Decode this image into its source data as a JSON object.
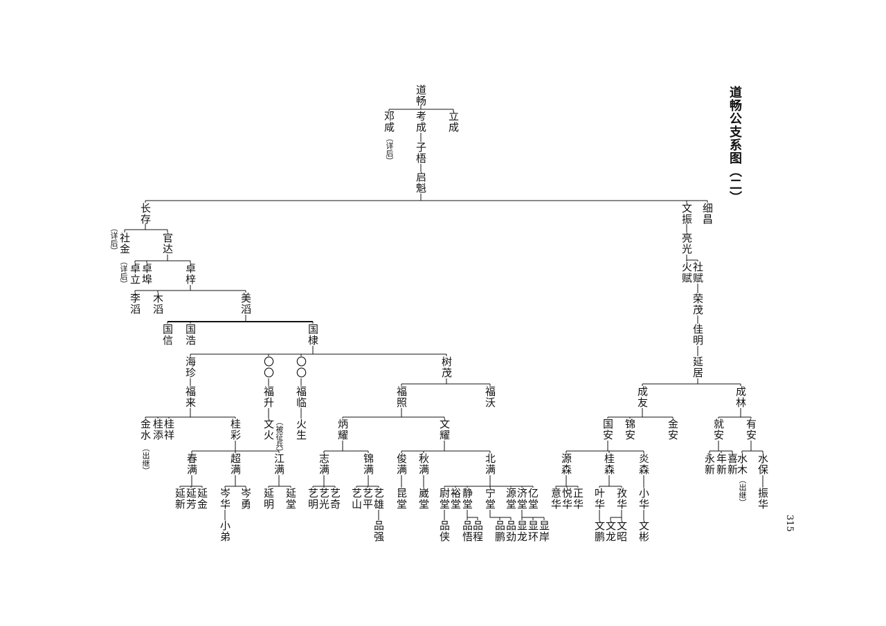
{
  "title": "道畅公支系图（二）",
  "page_number": "315",
  "tree": {
    "a1": "道畅",
    "a2": "邓咸",
    "a3": "考成",
    "a4": "立成",
    "a5": "子梧",
    "a6": "启魁",
    "b1": "长存",
    "b2": "文振",
    "b3": "细昌",
    "c1": "社金",
    "c2": "官达",
    "d1": "卓立",
    "d2": "卓埠",
    "d3": "卓梓",
    "e1": "李滔",
    "e2": "木滔",
    "e3": "美滔",
    "f1": "国信",
    "f2": "国浩",
    "f3": "国棣",
    "g1": "海珍",
    "g2": "〇〇",
    "g3": "〇〇",
    "g4": "树茂",
    "h1": "福来",
    "h2": "福升",
    "h3": "福临",
    "i1": "金水",
    "i2": "桂添",
    "i3": "桂祥",
    "i4": "桂彩",
    "j1": "文火",
    "k1": "火生",
    "l1": "春满",
    "l2": "超满",
    "l3": "江满",
    "m1": "延新",
    "m2": "延芳",
    "m3": "延金",
    "m4": "岑华",
    "m5": "岑勇",
    "m6": "延明",
    "m7": "延堂",
    "n1": "小弟",
    "o1": "福照",
    "o2": "福沃",
    "p1": "炳耀",
    "p2": "文耀",
    "q1": "志满",
    "q2": "锦满",
    "q3": "俊满",
    "q4": "秋满",
    "q5": "北满",
    "r1": "艺明",
    "r2": "艺光",
    "r3": "艺奇",
    "r4": "艺山",
    "r5": "艺平",
    "r6": "艺雄",
    "r7": "昆堂",
    "r8": "崴堂",
    "r9": "尉堂",
    "r10": "裕堂",
    "r11": "静堂",
    "r12": "宁堂",
    "r13": "源堂",
    "r14": "济堂",
    "r15": "亿堂",
    "s1": "品强",
    "s2": "品侠",
    "s3": "品悟",
    "s4": "品程",
    "s5": "品鹏",
    "s6": "品劲",
    "s7": "显龙",
    "s8": "显环",
    "s9": "显岸",
    "t1": "亮光",
    "t2": "火赋",
    "t3": "社赋",
    "t4": "荣茂",
    "t5": "佳明",
    "t6": "延居",
    "u1": "成友",
    "u2": "成林",
    "v1": "国安",
    "v2": "锦安",
    "v3": "金安",
    "w1": "源森",
    "w2": "桂森",
    "w3": "炎森",
    "x1": "意华",
    "x2": "悦华",
    "x3": "正华",
    "x4": "叶华",
    "x5": "孜华",
    "x6": "小华",
    "y1": "文鹏",
    "y2": "文龙",
    "y3": "文昭",
    "y4": "文彬",
    "z1": "就安",
    "z2": "有安",
    "z3": "永新",
    "z4": "年新",
    "z5": "喜新",
    "z6": "水木",
    "z7": "水保",
    "z8": "振华"
  },
  "notes": {
    "a2": "（详后）",
    "c1": "（详后）",
    "d1": "（详后）",
    "i1": "（出继）",
    "j1": "（被征兵）",
    "z6": "（出继）"
  }
}
